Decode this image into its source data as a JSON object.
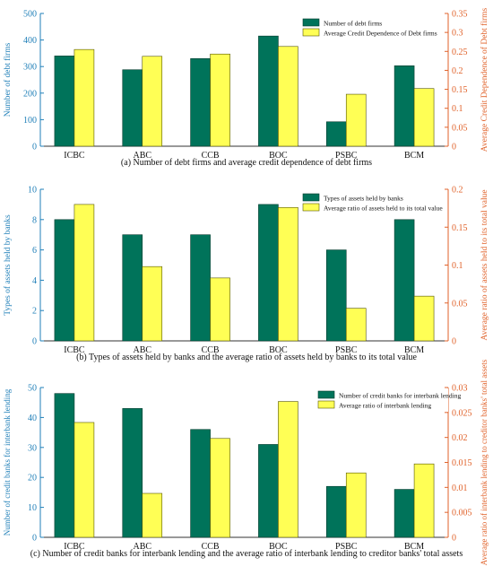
{
  "colors": {
    "left_bar": "#00735a",
    "right_bar": "#ffff55",
    "left_axis": "#1f7fb8",
    "right_axis": "#e0622a",
    "text": "#111111"
  },
  "chart_data": [
    {
      "type": "bar",
      "caption": "(a) Number of debt firms and average credit dependence of debt firms",
      "categories": [
        "ICBC",
        "ABC",
        "CCB",
        "BOC",
        "PSBC",
        "BCM"
      ],
      "ylabel": "Number of debt firms",
      "y2label": "Average Credit Dependence of Debt firms",
      "ylim": [
        0,
        500
      ],
      "yticks": [
        "0",
        "100",
        "200",
        "300",
        "400",
        "500"
      ],
      "y2lim": [
        0,
        0.35
      ],
      "y2ticks": [
        "0",
        "0.05",
        "0.1",
        "0.15",
        "0.2",
        "0.25",
        "0.3",
        "0.35"
      ],
      "legend_position": "top-right",
      "series": [
        {
          "name": "Number of debt firms",
          "axis": "left",
          "values": [
            340,
            288,
            330,
            415,
            92,
            303
          ]
        },
        {
          "name": "Average Credit Dependence of Debt firms",
          "axis": "right",
          "values": [
            0.255,
            0.237,
            0.243,
            0.263,
            0.137,
            0.152
          ]
        }
      ]
    },
    {
      "type": "bar",
      "caption": "(b) Types of assets held by banks and the average ratio of assets held by banks to its total value",
      "categories": [
        "ICBC",
        "ABC",
        "CCB",
        "BOC",
        "PSBC",
        "BCM"
      ],
      "ylabel": "Types of assets held by banks",
      "y2label": "Average ratio of assets held to its total value",
      "ylim": [
        0,
        10
      ],
      "yticks": [
        "0",
        "2",
        "4",
        "6",
        "8",
        "10"
      ],
      "y2lim": [
        0,
        0.2
      ],
      "y2ticks": [
        "0",
        "0.05",
        "0.1",
        "0.15",
        "0.2"
      ],
      "legend_position": "top-right",
      "series": [
        {
          "name": "Types of assets held by banks",
          "axis": "left",
          "values": [
            8,
            7,
            7,
            9,
            6,
            8
          ]
        },
        {
          "name": "Average ratio of assets held to its total value",
          "axis": "right",
          "values": [
            0.18,
            0.098,
            0.083,
            0.176,
            0.043,
            0.059
          ]
        }
      ]
    },
    {
      "type": "bar",
      "caption": "(c) Number of credit banks for interbank lending and the average ratio of interbank lending to creditor banks' total assets",
      "categories": [
        "ICBC",
        "ABC",
        "CCB",
        "BOC",
        "PSBC",
        "BCM"
      ],
      "ylabel": "Number of credit banks for interbank lending",
      "y2label": "Average ratio of interbank lending to creditor banks' total assets",
      "ylim": [
        0,
        50
      ],
      "yticks": [
        "0",
        "10",
        "20",
        "30",
        "40",
        "50"
      ],
      "y2lim": [
        0,
        0.03
      ],
      "y2ticks": [
        "0",
        "0.005",
        "0.01",
        "0.015",
        "0.02",
        "0.025",
        "0.03"
      ],
      "legend_position": "top-right",
      "series": [
        {
          "name": "Number of credit banks for interbank lending",
          "axis": "left",
          "values": [
            48,
            43,
            36,
            31,
            17,
            16
          ]
        },
        {
          "name": "Average ratio of interbank lending",
          "axis": "right",
          "values": [
            0.023,
            0.0088,
            0.0198,
            0.0272,
            0.0129,
            0.0147
          ]
        }
      ]
    }
  ]
}
